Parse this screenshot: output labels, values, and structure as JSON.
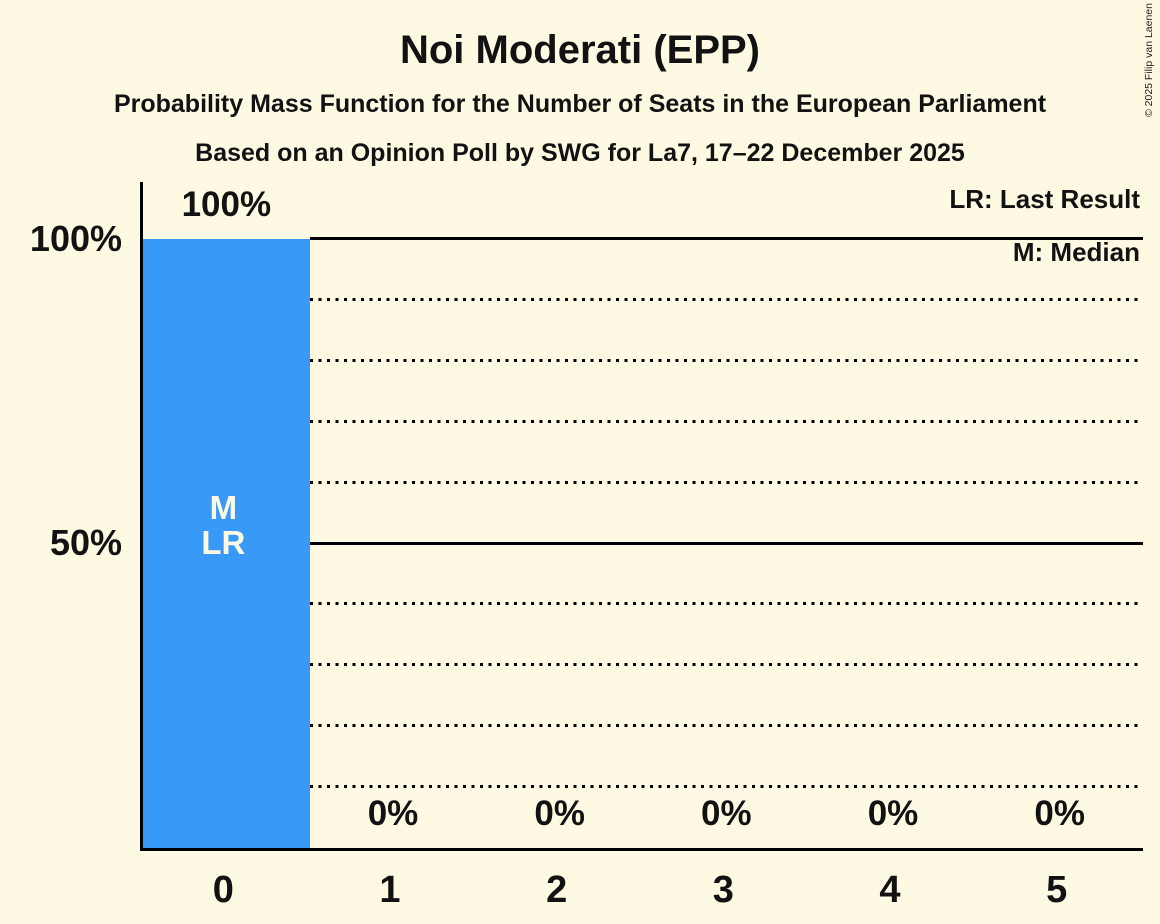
{
  "header": {
    "title": "Noi Moderati (EPP)",
    "subtitle1": "Probability Mass Function for the Number of Seats in the European Parliament",
    "subtitle2": "Based on an Opinion Poll by SWG for La7, 17–22 December 2025"
  },
  "copyright": "© 2025 Filip van Laenen",
  "legend": {
    "last_result": "LR: Last Result",
    "median": "M: Median"
  },
  "colors": {
    "background": "#FDF9E3",
    "bar": "#3899F6",
    "ink": "#121212",
    "bar_marker_text": "#FDF9E3"
  },
  "chart_data": {
    "type": "bar",
    "title": "Noi Moderati (EPP)",
    "categories": [
      "0",
      "1",
      "2",
      "3",
      "4",
      "5"
    ],
    "values": [
      100,
      0,
      0,
      0,
      0,
      0
    ],
    "value_labels": [
      "100%",
      "0%",
      "0%",
      "0%",
      "0%",
      "0%"
    ],
    "ylim": [
      0,
      100
    ],
    "y_axis_labels": [
      {
        "value": 100,
        "label": "100%"
      },
      {
        "value": 50,
        "label": "50%"
      }
    ],
    "gridlines": {
      "solid": [
        100,
        50
      ],
      "dotted": [
        90,
        80,
        70,
        60,
        40,
        30,
        20,
        10
      ]
    },
    "bar_markers": [
      {
        "category_index": 0,
        "labels": [
          "M",
          "LR"
        ]
      }
    ],
    "legend_position": "top-right",
    "grid": true
  }
}
